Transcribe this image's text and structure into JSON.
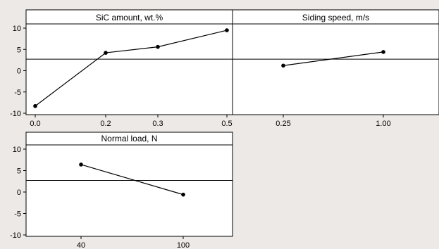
{
  "chart_data": [
    {
      "type": "line",
      "title": "SiC amount, wt.%",
      "categories": [
        "0.0",
        "0.2",
        "0.3",
        "0.5"
      ],
      "x": [
        0.0,
        0.2,
        0.3,
        0.5
      ],
      "values": [
        -8.3,
        4.2,
        5.6,
        9.5
      ],
      "ylim": [
        -10,
        10
      ],
      "yticks": [
        10,
        5,
        0,
        -5,
        -10
      ],
      "reference_line": 2.7
    },
    {
      "type": "line",
      "title": "Siding speed, m/s",
      "categories": [
        "0.25",
        "1.00"
      ],
      "values": [
        1.2,
        4.4
      ],
      "ylim": [
        -10,
        10
      ],
      "reference_line": 2.7
    },
    {
      "type": "line",
      "title": "Normal load, N",
      "categories": [
        "40",
        "100"
      ],
      "values": [
        6.4,
        -0.6
      ],
      "ylim": [
        -10,
        10
      ],
      "yticks": [
        10,
        5,
        0,
        -5,
        -10
      ],
      "reference_line": 2.7
    }
  ]
}
